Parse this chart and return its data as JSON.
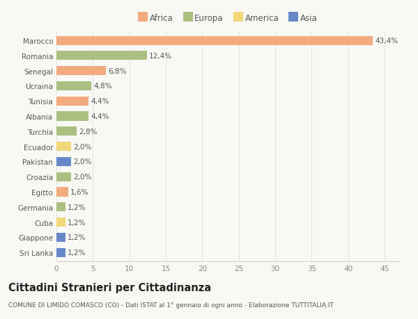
{
  "countries": [
    "Marocco",
    "Romania",
    "Senegal",
    "Ucraina",
    "Tunisia",
    "Albania",
    "Turchia",
    "Ecuador",
    "Pakistan",
    "Croazia",
    "Egitto",
    "Germania",
    "Cuba",
    "Giappone",
    "Sri Lanka"
  ],
  "values": [
    43.4,
    12.4,
    6.8,
    4.8,
    4.4,
    4.4,
    2.8,
    2.0,
    2.0,
    2.0,
    1.6,
    1.2,
    1.2,
    1.2,
    1.2
  ],
  "labels": [
    "43,4%",
    "12,4%",
    "6,8%",
    "4,8%",
    "4,4%",
    "4,4%",
    "2,8%",
    "2,0%",
    "2,0%",
    "2,0%",
    "1,6%",
    "1,2%",
    "1,2%",
    "1,2%",
    "1,2%"
  ],
  "continents": [
    "Africa",
    "Europa",
    "Africa",
    "Europa",
    "Africa",
    "Europa",
    "Europa",
    "America",
    "Asia",
    "Europa",
    "Africa",
    "Europa",
    "America",
    "Asia",
    "Asia"
  ],
  "colors": {
    "Africa": "#F2AA7E",
    "Europa": "#AABF80",
    "America": "#F2D878",
    "Asia": "#6688C8"
  },
  "xlim": [
    0,
    47
  ],
  "xticks": [
    0,
    5,
    10,
    15,
    20,
    25,
    30,
    35,
    40,
    45
  ],
  "title": "Cittadini Stranieri per Cittadinanza",
  "subtitle": "COMUNE DI LIMIDO COMASCO (CO) - Dati ISTAT al 1° gennaio di ogni anno - Elaborazione TUTTITALIA.IT",
  "background_color": "#f8f8f5",
  "bar_height": 0.6,
  "label_fontsize": 7.5,
  "ytick_fontsize": 7.5,
  "xtick_fontsize": 7.5,
  "title_fontsize": 10.5,
  "subtitle_fontsize": 6.5,
  "legend_fontsize": 8.5
}
